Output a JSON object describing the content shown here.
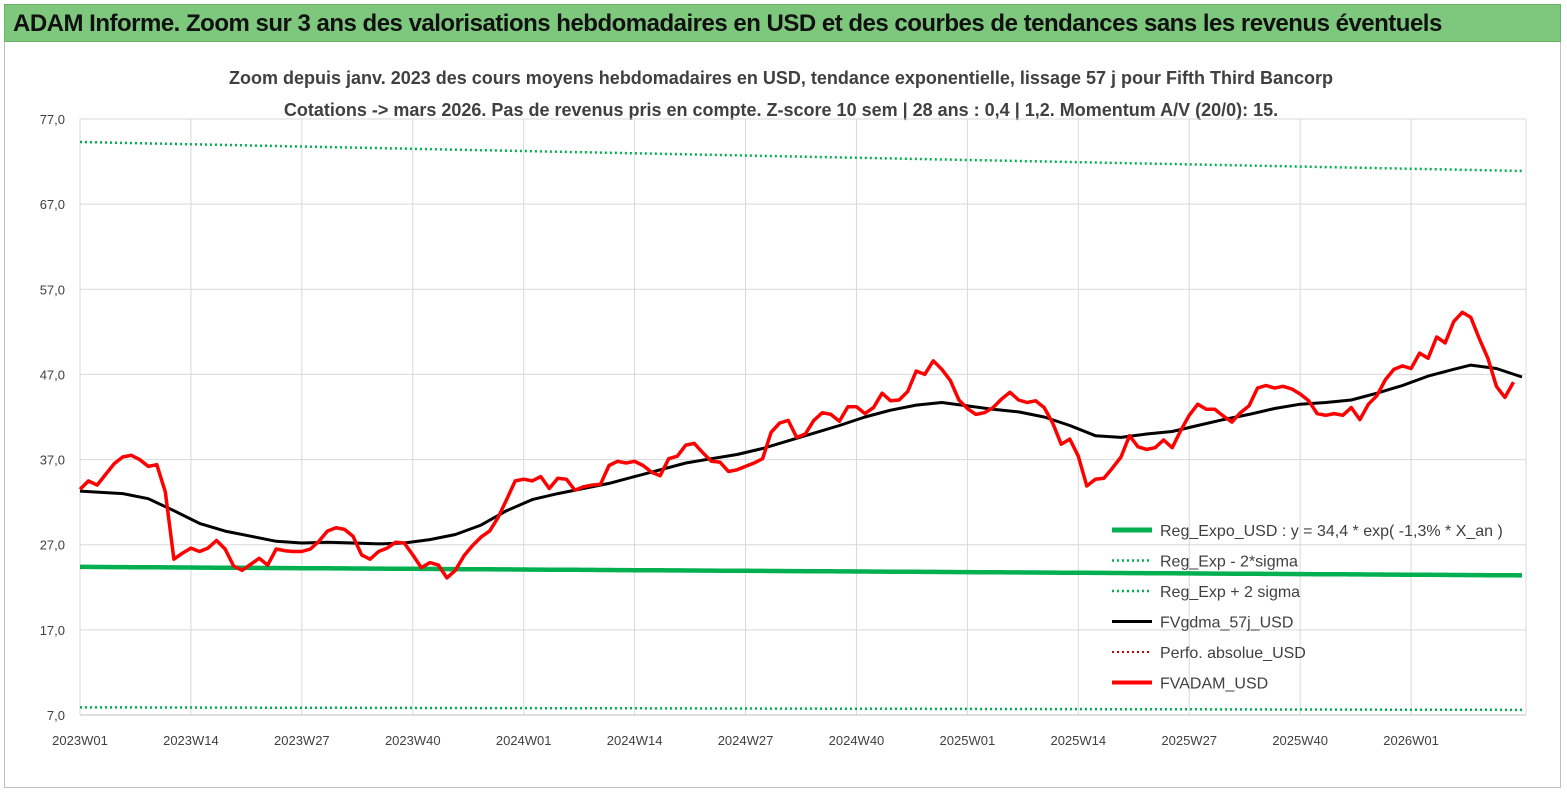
{
  "header": {
    "title": "ADAM Informe. Zoom sur 3 ans des valorisations hebdomadaires en USD et des courbes de tendances sans les revenus éventuels"
  },
  "chart_data": {
    "type": "line",
    "title": "Zoom depuis janv. 2023 des cours moyens hebdomadaires en USD, tendance exponentielle, lissage 57 j pour Fifth Third Bancorp",
    "subtitle": "Cotations -> mars 2026. Pas de revenus pris en compte. Z-score 10 sem | 28 ans : 0,4 | 1,2. Momentum A/V (20/0): 15.",
    "ylim": [
      7,
      77
    ],
    "y_ticks": [
      "77,0",
      "67,0",
      "57,0",
      "47,0",
      "37,0",
      "27,0",
      "17,0",
      "7,0"
    ],
    "y_tick_values": [
      77,
      67,
      57,
      47,
      37,
      27,
      17,
      7
    ],
    "x_ticks": [
      "2023W01",
      "2023W14",
      "2023W27",
      "2023W40",
      "2024W01",
      "2024W14",
      "2024W27",
      "2024W40",
      "2025W01",
      "2025W14",
      "2025W27",
      "2025W40",
      "2026W01"
    ],
    "x_tick_index": [
      0,
      13,
      26,
      39,
      52,
      65,
      78,
      91,
      104,
      117,
      130,
      143,
      156
    ],
    "n_points": 170,
    "legend_position": "bottom-right",
    "colors": {
      "reg_expo": "#00b050",
      "reg_band": "#00b050",
      "fvgdma": "#000000",
      "perfo": "#c00000",
      "fvadam": "#ff0000"
    },
    "series": [
      {
        "id": "reg_expo",
        "name": "Reg_Expo_USD : y = 34,4 * exp( -1,3% *  X_an )",
        "style": "solid-thick",
        "start": 24.4,
        "end": 23.4
      },
      {
        "id": "reg_minus",
        "name": "Reg_Exp - 2*sigma",
        "style": "dotted",
        "start": 7.9,
        "end": 7.6
      },
      {
        "id": "reg_plus",
        "name": "Reg_Exp + 2 sigma",
        "style": "dotted",
        "start": 74.3,
        "end": 70.9
      },
      {
        "id": "fvgdma",
        "name": "FVgdma_57j_USD",
        "style": "solid",
        "points": [
          [
            0,
            33.3
          ],
          [
            5,
            33.0
          ],
          [
            8,
            32.4
          ],
          [
            11,
            31.0
          ],
          [
            14,
            29.5
          ],
          [
            17,
            28.6
          ],
          [
            20,
            28.0
          ],
          [
            23,
            27.4
          ],
          [
            26,
            27.2
          ],
          [
            29,
            27.3
          ],
          [
            32,
            27.2
          ],
          [
            35,
            27.1
          ],
          [
            38,
            27.2
          ],
          [
            41,
            27.6
          ],
          [
            44,
            28.2
          ],
          [
            47,
            29.3
          ],
          [
            50,
            31.0
          ],
          [
            53,
            32.3
          ],
          [
            56,
            33.0
          ],
          [
            59,
            33.6
          ],
          [
            62,
            34.2
          ],
          [
            65,
            35.0
          ],
          [
            68,
            35.8
          ],
          [
            71,
            36.6
          ],
          [
            74,
            37.1
          ],
          [
            77,
            37.6
          ],
          [
            80,
            38.3
          ],
          [
            83,
            39.2
          ],
          [
            86,
            40.1
          ],
          [
            89,
            41.0
          ],
          [
            92,
            42.0
          ],
          [
            95,
            42.8
          ],
          [
            98,
            43.4
          ],
          [
            101,
            43.7
          ],
          [
            104,
            43.3
          ],
          [
            107,
            42.9
          ],
          [
            110,
            42.6
          ],
          [
            113,
            42.0
          ],
          [
            116,
            41.0
          ],
          [
            119,
            39.8
          ],
          [
            122,
            39.6
          ],
          [
            125,
            40.0
          ],
          [
            128,
            40.3
          ],
          [
            131,
            41.0
          ],
          [
            134,
            41.7
          ],
          [
            137,
            42.3
          ],
          [
            140,
            43.0
          ],
          [
            143,
            43.5
          ],
          [
            146,
            43.7
          ],
          [
            149,
            44.0
          ],
          [
            152,
            44.8
          ],
          [
            155,
            45.7
          ],
          [
            158,
            46.8
          ],
          [
            161,
            47.6
          ],
          [
            163,
            48.1
          ],
          [
            166,
            47.7
          ],
          [
            169,
            46.7
          ]
        ]
      },
      {
        "id": "perfo",
        "name": "Perfo. absolue_USD",
        "style": "dotted",
        "points": []
      },
      {
        "id": "fvadam",
        "name": "FVADAM_USD",
        "style": "solid-thick",
        "points": [
          [
            0,
            33.5
          ],
          [
            1,
            34.5
          ],
          [
            2,
            34.0
          ],
          [
            4,
            36.5
          ],
          [
            5,
            37.3
          ],
          [
            6,
            37.5
          ],
          [
            7,
            37.0
          ],
          [
            8,
            36.2
          ],
          [
            9,
            36.4
          ],
          [
            10,
            33.2
          ],
          [
            11,
            25.3
          ],
          [
            12,
            26.0
          ],
          [
            13,
            26.6
          ],
          [
            14,
            26.2
          ],
          [
            15,
            26.6
          ],
          [
            16,
            27.5
          ],
          [
            17,
            26.5
          ],
          [
            18,
            24.5
          ],
          [
            19,
            24.0
          ],
          [
            20,
            24.7
          ],
          [
            21,
            25.4
          ],
          [
            22,
            24.6
          ],
          [
            23,
            26.5
          ],
          [
            24,
            26.3
          ],
          [
            25,
            26.2
          ],
          [
            26,
            26.2
          ],
          [
            27,
            26.5
          ],
          [
            28,
            27.4
          ],
          [
            29,
            28.6
          ],
          [
            30,
            29.0
          ],
          [
            31,
            28.8
          ],
          [
            32,
            28.0
          ],
          [
            33,
            25.8
          ],
          [
            34,
            25.3
          ],
          [
            35,
            26.2
          ],
          [
            36,
            26.6
          ],
          [
            37,
            27.3
          ],
          [
            38,
            27.2
          ],
          [
            39,
            25.8
          ],
          [
            40,
            24.3
          ],
          [
            41,
            24.9
          ],
          [
            42,
            24.6
          ],
          [
            43,
            23.1
          ],
          [
            44,
            24.0
          ],
          [
            45,
            25.7
          ],
          [
            46,
            26.9
          ],
          [
            47,
            27.9
          ],
          [
            48,
            28.6
          ],
          [
            49,
            30.2
          ],
          [
            50,
            32.3
          ],
          [
            51,
            34.5
          ],
          [
            52,
            34.7
          ],
          [
            53,
            34.5
          ],
          [
            54,
            35.0
          ],
          [
            55,
            33.6
          ],
          [
            56,
            34.8
          ],
          [
            57,
            34.7
          ],
          [
            58,
            33.4
          ],
          [
            59,
            33.8
          ],
          [
            60,
            34.0
          ],
          [
            61,
            34.1
          ],
          [
            62,
            36.3
          ],
          [
            63,
            36.8
          ],
          [
            64,
            36.6
          ],
          [
            65,
            36.8
          ],
          [
            66,
            36.3
          ],
          [
            67,
            35.5
          ],
          [
            68,
            35.1
          ],
          [
            69,
            37.1
          ],
          [
            70,
            37.4
          ],
          [
            71,
            38.7
          ],
          [
            72,
            38.9
          ],
          [
            73,
            37.8
          ],
          [
            74,
            36.8
          ],
          [
            75,
            36.7
          ],
          [
            76,
            35.6
          ],
          [
            77,
            35.8
          ],
          [
            78,
            36.2
          ],
          [
            79,
            36.6
          ],
          [
            80,
            37.1
          ],
          [
            81,
            40.2
          ],
          [
            82,
            41.3
          ],
          [
            83,
            41.6
          ],
          [
            84,
            39.6
          ],
          [
            85,
            40.0
          ],
          [
            86,
            41.6
          ],
          [
            87,
            42.5
          ],
          [
            88,
            42.3
          ],
          [
            89,
            41.5
          ],
          [
            90,
            43.2
          ],
          [
            91,
            43.2
          ],
          [
            92,
            42.4
          ],
          [
            93,
            43.1
          ],
          [
            94,
            44.8
          ],
          [
            95,
            43.9
          ],
          [
            96,
            44.0
          ],
          [
            97,
            45.0
          ],
          [
            98,
            47.4
          ],
          [
            99,
            47.0
          ],
          [
            100,
            48.6
          ],
          [
            101,
            47.6
          ],
          [
            102,
            46.3
          ],
          [
            103,
            44.0
          ],
          [
            104,
            43.0
          ],
          [
            105,
            42.3
          ],
          [
            106,
            42.5
          ],
          [
            107,
            43.1
          ],
          [
            108,
            44.1
          ],
          [
            109,
            44.9
          ],
          [
            110,
            44.0
          ],
          [
            111,
            43.7
          ],
          [
            112,
            43.9
          ],
          [
            113,
            43.1
          ],
          [
            114,
            41.3
          ],
          [
            115,
            38.8
          ],
          [
            116,
            39.4
          ],
          [
            117,
            37.4
          ],
          [
            118,
            33.9
          ],
          [
            119,
            34.7
          ],
          [
            120,
            34.8
          ],
          [
            121,
            36.0
          ],
          [
            122,
            37.3
          ],
          [
            123,
            39.8
          ],
          [
            124,
            38.5
          ],
          [
            125,
            38.2
          ],
          [
            126,
            38.4
          ],
          [
            127,
            39.3
          ],
          [
            128,
            38.4
          ],
          [
            129,
            40.4
          ],
          [
            130,
            42.2
          ],
          [
            131,
            43.5
          ],
          [
            132,
            42.9
          ],
          [
            133,
            42.9
          ],
          [
            134,
            42.1
          ],
          [
            135,
            41.4
          ],
          [
            136,
            42.5
          ],
          [
            137,
            43.3
          ],
          [
            138,
            45.4
          ],
          [
            139,
            45.7
          ],
          [
            140,
            45.4
          ],
          [
            141,
            45.6
          ],
          [
            142,
            45.3
          ],
          [
            143,
            44.7
          ],
          [
            144,
            43.9
          ],
          [
            145,
            42.4
          ],
          [
            146,
            42.2
          ],
          [
            147,
            42.4
          ],
          [
            148,
            42.2
          ],
          [
            149,
            43.1
          ],
          [
            150,
            41.7
          ],
          [
            151,
            43.5
          ],
          [
            152,
            44.5
          ],
          [
            153,
            46.4
          ],
          [
            154,
            47.6
          ],
          [
            155,
            48.0
          ],
          [
            156,
            47.7
          ],
          [
            157,
            49.5
          ],
          [
            158,
            48.9
          ],
          [
            159,
            51.4
          ],
          [
            160,
            50.7
          ],
          [
            161,
            53.2
          ],
          [
            162,
            54.3
          ],
          [
            163,
            53.7
          ],
          [
            164,
            51.2
          ],
          [
            165,
            48.9
          ],
          [
            166,
            45.6
          ],
          [
            167,
            44.3
          ],
          [
            168,
            46.1
          ]
        ]
      }
    ]
  }
}
